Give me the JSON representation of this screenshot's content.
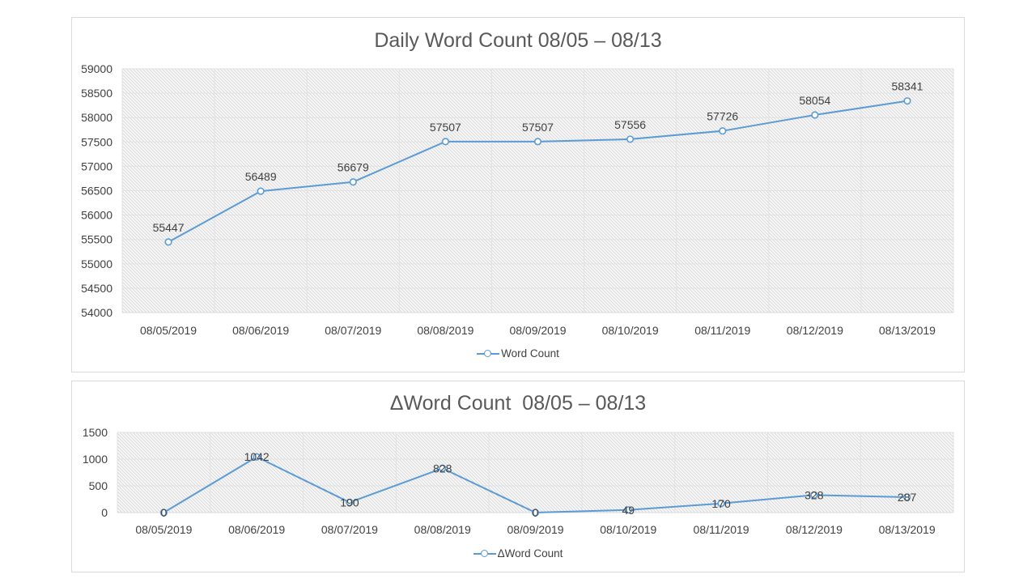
{
  "colors": {
    "series": "#5b9bd5",
    "grid": "#e2e2e2",
    "hatch": "#d0d0d0",
    "border": "#d9d9d9",
    "text": "#404040",
    "title": "#595959"
  },
  "chart_data": [
    {
      "type": "line",
      "title": "Daily Word Count 08/05 – 08/13",
      "categories": [
        "08/05/2019",
        "08/06/2019",
        "08/07/2019",
        "08/08/2019",
        "08/09/2019",
        "08/10/2019",
        "08/11/2019",
        "08/12/2019",
        "08/13/2019"
      ],
      "series": [
        {
          "name": "Word Count",
          "values": [
            55447,
            56489,
            56679,
            57507,
            57507,
            57556,
            57726,
            58054,
            58341
          ]
        }
      ],
      "ylim": [
        54000,
        59000
      ],
      "yticks": [
        54000,
        54500,
        55000,
        55500,
        56000,
        56500,
        57000,
        57500,
        58000,
        58500,
        59000
      ],
      "data_labels": true,
      "legend_position": "bottom",
      "grid": true,
      "marker": "hollow-circle"
    },
    {
      "type": "line",
      "title": "ΔWord Count  08/05 – 08/13",
      "categories": [
        "08/05/2019",
        "08/06/2019",
        "08/07/2019",
        "08/08/2019",
        "08/09/2019",
        "08/10/2019",
        "08/11/2019",
        "08/12/2019",
        "08/13/2019"
      ],
      "series": [
        {
          "name": "ΔWord Count",
          "values": [
            0,
            1042,
            190,
            828,
            0,
            49,
            170,
            328,
            287
          ]
        }
      ],
      "ylim": [
        0,
        1500
      ],
      "yticks": [
        0,
        500,
        1000,
        1500
      ],
      "data_labels": true,
      "legend_position": "bottom",
      "grid": true,
      "marker": "hollow-circle"
    }
  ]
}
